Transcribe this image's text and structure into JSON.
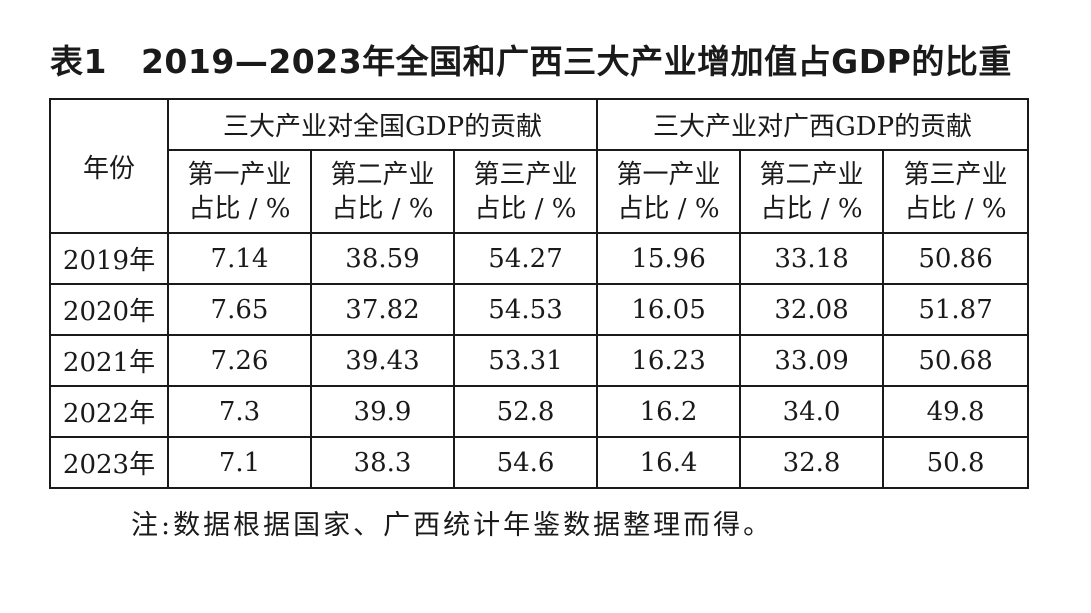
{
  "title": {
    "label": "表1",
    "text": "2019—2023年全国和广西三大产业增加值占GDP的比重"
  },
  "table": {
    "corner_header": "年份",
    "group_headers": [
      "三大产业对全国GDP的贡献",
      "三大产业对广西GDP的贡献"
    ],
    "sub_headers": [
      {
        "line1": "第一产业",
        "line2": "占比 / %"
      },
      {
        "line1": "第二产业",
        "line2": "占比 / %"
      },
      {
        "line1": "第三产业",
        "line2": "占比 / %"
      },
      {
        "line1": "第一产业",
        "line2": "占比 / %"
      },
      {
        "line1": "第二产业",
        "line2": "占比 / %"
      },
      {
        "line1": "第三产业",
        "line2": "占比 / %"
      }
    ],
    "rows": [
      {
        "year": "2019年",
        "values": [
          "7.14",
          "38.59",
          "54.27",
          "15.96",
          "33.18",
          "50.86"
        ]
      },
      {
        "year": "2020年",
        "values": [
          "7.65",
          "37.82",
          "54.53",
          "16.05",
          "32.08",
          "51.87"
        ]
      },
      {
        "year": "2021年",
        "values": [
          "7.26",
          "39.43",
          "53.31",
          "16.23",
          "33.09",
          "50.68"
        ]
      },
      {
        "year": "2022年",
        "values": [
          "7.3",
          "39.9",
          "52.8",
          "16.2",
          "34.0",
          "49.8"
        ]
      },
      {
        "year": "2023年",
        "values": [
          "7.1",
          "38.3",
          "54.6",
          "16.4",
          "32.8",
          "50.8"
        ]
      }
    ]
  },
  "note": "注:数据根据国家、广西统计年鉴数据整理而得。"
}
